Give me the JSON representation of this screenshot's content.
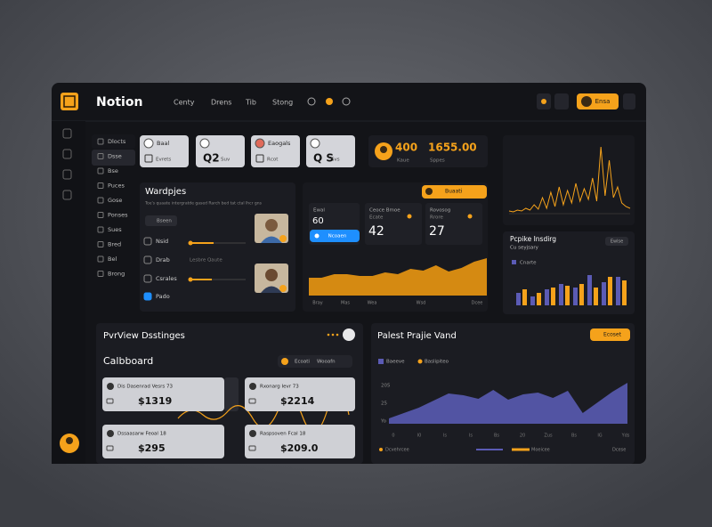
{
  "header": {
    "brand": "Notion",
    "nav": [
      "Centy",
      "Drens",
      "Tib",
      "Stong"
    ],
    "button": "Ensa"
  },
  "sidebar": {
    "items": [
      "Dlocts",
      "Dsse",
      "Bse",
      "Puces",
      "Gose",
      "Ponses",
      "Sues",
      "Bred",
      "Bel",
      "Brong"
    ]
  },
  "top_cards": [
    {
      "title": "Baal",
      "note": "Evrets"
    },
    {
      "big": "Q2",
      "note": "Suv"
    },
    {
      "title": "Eaogals",
      "note": "Rcot"
    },
    {
      "big": "Q S",
      "note": "Svs"
    }
  ],
  "stats": [
    {
      "value": "400",
      "label": "Kaue"
    },
    {
      "value": "1655.00",
      "label": "Sppes"
    }
  ],
  "spike_chart": {
    "values": [
      3,
      2,
      4,
      3,
      6,
      4,
      10,
      5,
      18,
      6,
      24,
      8,
      30,
      10,
      26,
      12,
      34,
      14,
      28,
      16,
      40,
      14,
      75,
      20,
      60,
      18,
      30,
      12,
      8,
      6
    ]
  },
  "workflows": {
    "title": "Wardpjes",
    "subtitle": "Toe's quaate intergratde gased Rarch bed tat ctal lhcr gns",
    "tag": "Bseen",
    "rows": [
      "Nsid",
      "Drab",
      "Csrales",
      "Pado"
    ],
    "caption": "Lesbre Qaute"
  },
  "metrics": {
    "tag": "Buaati",
    "cards": [
      {
        "label": "Ewal",
        "value": "60",
        "button": "Ncoaen"
      },
      {
        "label": "Ceoce Bmoe",
        "sub": "Ecate",
        "value": "42"
      },
      {
        "label": "Rovosog",
        "sub": "Rrore",
        "value": "27"
      }
    ],
    "chart": {
      "values": [
        20,
        20,
        24,
        24,
        22,
        22,
        26,
        24,
        30,
        28,
        34,
        27,
        31,
        38,
        42
      ],
      "labels": [
        "Bray",
        "Mas",
        "Wea",
        "Wsd",
        "Dcee"
      ]
    }
  },
  "bar_chart": {
    "title": "Pcpike Insdirg",
    "subtitle": "Cu seyjsary",
    "tag": "Ewlse",
    "legend": "Cnarte",
    "series": [
      {
        "color": "#5b5bb5",
        "values": [
          14,
          10,
          18,
          24,
          20,
          34,
          26,
          32
        ]
      },
      {
        "color": "#f5a21b",
        "values": [
          18,
          14,
          20,
          22,
          24,
          20,
          32,
          28
        ]
      }
    ]
  },
  "bottom_left": {
    "title": "PvrView Dsstinges",
    "subtitle": "Calbboard",
    "tags": [
      "Ecoati",
      "Wooafn"
    ],
    "cards": [
      {
        "title": "Dis Dasenrad Vesrs 73",
        "amount": "$1319"
      },
      {
        "title": "Rxonarg Ievr 73",
        "amount": "$2214"
      },
      {
        "title": "Dssaasarw Feoal 18",
        "amount": "$295"
      },
      {
        "title": "Raspsoven Fcal 18",
        "amount": "$209.0"
      }
    ]
  },
  "bottom_right": {
    "title": "Palest Prajie Vand",
    "tag": "Ecoset",
    "legend": [
      "Baeeve",
      "Baslipiteo"
    ],
    "yticks": [
      "205",
      "25",
      "Yo"
    ],
    "xticks": [
      "0",
      "I0",
      "Is",
      "Is",
      "Bs",
      "20",
      "Zus",
      "Bs",
      "IG",
      "Yds"
    ],
    "values": [
      6,
      12,
      18,
      26,
      34,
      32,
      28,
      38,
      27,
      33,
      35,
      29,
      37,
      12,
      24,
      36,
      46
    ],
    "footer": [
      "Dcvehrcee",
      "Moeicee",
      "Dcese"
    ]
  }
}
